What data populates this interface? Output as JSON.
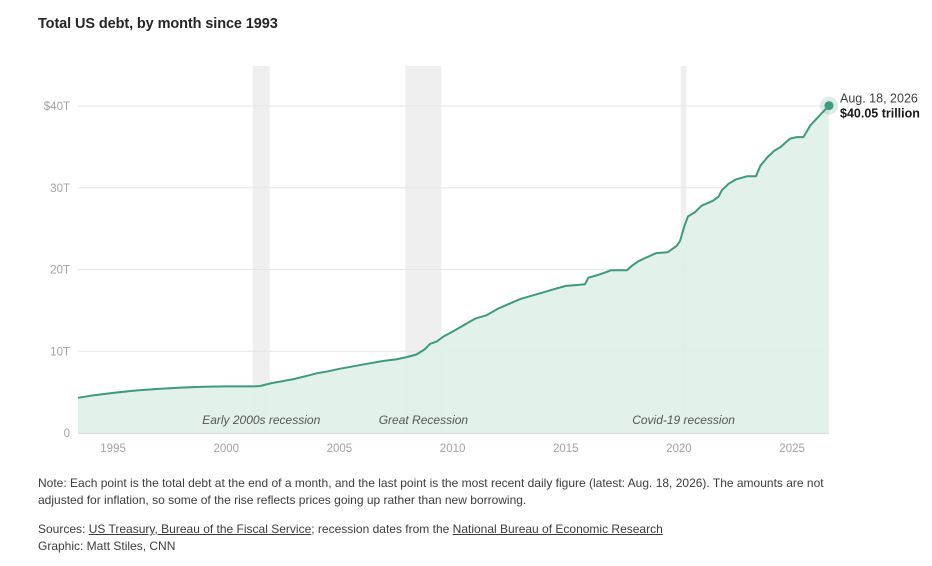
{
  "subtitle": "Total US debt, by month since 1993",
  "note": "Note: Each point is the total debt at the end of a month, and the last point is the most recent daily figure (latest: Aug. 18, 2026). The amounts are not adjusted for inflation, so some of the rise reflects prices going up rather than new borrowing.",
  "sources": {
    "prefix": "Sources: ",
    "link1": "US Treasury, Bureau of the Fiscal Service",
    "middle": "; recession dates from the ",
    "link2": "National Bureau of Economic Research",
    "graphic": "Graphic: Matt Stiles, CNN"
  },
  "colors": {
    "line": "#3d9a7f",
    "area": "#e0efe9",
    "recession": "#efefef",
    "grid": "#e6e6e6"
  },
  "chart_data": {
    "type": "area",
    "title": "Total US debt, by month since 1993",
    "xlim": [
      1993.45,
      2026.63
    ],
    "ylim": [
      0,
      40
    ],
    "y_ticks": [
      {
        "value": 0,
        "label": "0"
      },
      {
        "value": 10,
        "label": "10T"
      },
      {
        "value": 20,
        "label": "20T"
      },
      {
        "value": 30,
        "label": "30T"
      },
      {
        "value": 40,
        "label": "$40T"
      }
    ],
    "x_ticks": [
      {
        "value": 1995,
        "label": "1995"
      },
      {
        "value": 2000,
        "label": "2000"
      },
      {
        "value": 2005,
        "label": "2005"
      },
      {
        "value": 2010,
        "label": "2010"
      },
      {
        "value": 2015,
        "label": "2015"
      },
      {
        "value": 2020,
        "label": "2020"
      },
      {
        "value": 2025,
        "label": "2025"
      }
    ],
    "grid": true,
    "series": [
      {
        "unit": "trillion USD",
        "x": [
          1993.45,
          1994.0,
          1995.0,
          1996.0,
          1997.0,
          1998.0,
          1999.0,
          2000.0,
          2000.8,
          2001.2,
          2001.5,
          2002.0,
          2002.5,
          2003.0,
          2003.5,
          2004.0,
          2004.5,
          2005.0,
          2005.5,
          2006.0,
          2006.5,
          2007.0,
          2007.5,
          2008.0,
          2008.4,
          2008.75,
          2008.9,
          2009.0,
          2009.3,
          2009.6,
          2010.0,
          2010.5,
          2011.0,
          2011.5,
          2012.0,
          2012.5,
          2013.0,
          2013.5,
          2014.0,
          2014.5,
          2015.0,
          2015.5,
          2015.85,
          2016.0,
          2016.5,
          2017.0,
          2017.7,
          2017.9,
          2018.2,
          2018.5,
          2019.0,
          2019.5,
          2019.9,
          2020.05,
          2020.25,
          2020.4,
          2020.7,
          2021.0,
          2021.5,
          2021.75,
          2021.9,
          2022.2,
          2022.5,
          2023.0,
          2023.4,
          2023.6,
          2023.9,
          2024.2,
          2024.5,
          2024.9,
          2025.2,
          2025.5,
          2025.8,
          2026.2,
          2026.63
        ],
        "y": [
          4.3,
          4.55,
          4.9,
          5.2,
          5.4,
          5.55,
          5.65,
          5.7,
          5.7,
          5.7,
          5.75,
          6.1,
          6.35,
          6.6,
          6.95,
          7.3,
          7.55,
          7.85,
          8.1,
          8.35,
          8.6,
          8.85,
          9.0,
          9.3,
          9.6,
          10.2,
          10.6,
          10.9,
          11.2,
          11.8,
          12.4,
          13.2,
          14.0,
          14.4,
          15.2,
          15.8,
          16.4,
          16.8,
          17.2,
          17.6,
          18.0,
          18.1,
          18.2,
          19.0,
          19.4,
          19.9,
          19.9,
          20.4,
          21.0,
          21.4,
          22.0,
          22.1,
          22.9,
          23.5,
          25.4,
          26.5,
          27.0,
          27.8,
          28.4,
          28.9,
          29.7,
          30.5,
          31.0,
          31.4,
          31.4,
          32.7,
          33.7,
          34.5,
          35.0,
          36.0,
          36.2,
          36.2,
          37.6,
          38.8,
          40.05
        ]
      }
    ],
    "recessions": [
      {
        "label": "Early 2000s recession",
        "start": 2001.17,
        "end": 2001.92
      },
      {
        "label": "Great Recession",
        "start": 2007.92,
        "end": 2009.5
      },
      {
        "label": "Covid-19 recession",
        "start": 2020.08,
        "end": 2020.33
      }
    ],
    "annotation": {
      "date": "Aug. 18, 2026",
      "value_label": "$40.05 trillion",
      "x": 2026.63,
      "y": 40.05
    }
  }
}
